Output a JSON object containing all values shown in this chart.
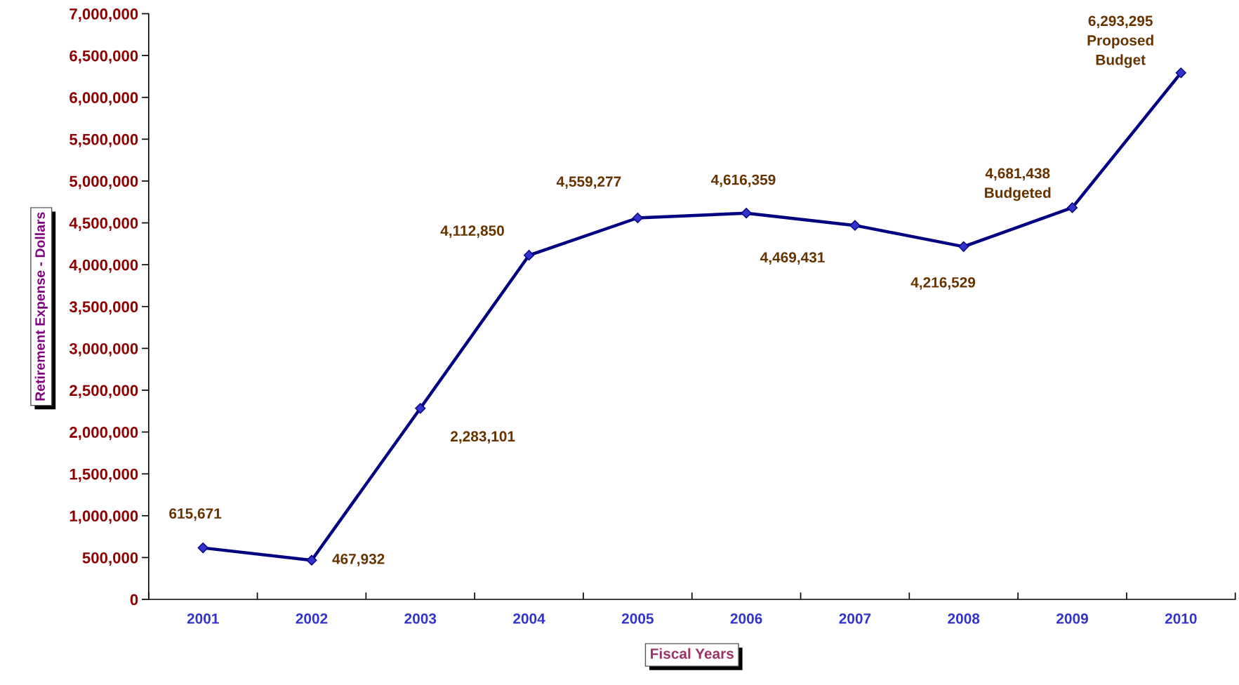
{
  "chart_data": {
    "type": "line",
    "xlabel": "Fiscal Years",
    "ylabel": "Retirement Expense - Dollars",
    "categories": [
      "2001",
      "2002",
      "2003",
      "2004",
      "2005",
      "2006",
      "2007",
      "2008",
      "2009",
      "2010"
    ],
    "series": [
      {
        "color": "#000080",
        "values": [
          615671,
          467932,
          2283101,
          4112850,
          4559277,
          4616359,
          4469431,
          4216529,
          4681438,
          6293295
        ],
        "value_labels": [
          "615,671",
          "467,932",
          "2,283,101",
          "4,112,850",
          "4,559,277",
          "4,616,359",
          "4,469,431",
          "4,216,529",
          "4,681,438\nBudgeted",
          "6,293,295\nProposed\nBudget"
        ]
      }
    ],
    "marker": "diamond",
    "line_style": "solid",
    "data_labels": true,
    "ylim": [
      0,
      7000000
    ],
    "yticks": [
      {
        "value": 0,
        "label": "0"
      },
      {
        "value": 500000,
        "label": "500,000"
      },
      {
        "value": 1000000,
        "label": "1,000,000"
      },
      {
        "value": 1500000,
        "label": "1,500,000"
      },
      {
        "value": 2000000,
        "label": "2,000,000"
      },
      {
        "value": 2500000,
        "label": "2,500,000"
      },
      {
        "value": 3000000,
        "label": "3,000,000"
      },
      {
        "value": 3500000,
        "label": "3,500,000"
      },
      {
        "value": 4000000,
        "label": "4,000,000"
      },
      {
        "value": 4500000,
        "label": "4,500,000"
      },
      {
        "value": 5000000,
        "label": "5,000,000"
      },
      {
        "value": 5500000,
        "label": "5,500,000"
      },
      {
        "value": 6000000,
        "label": "6,000,000"
      },
      {
        "value": 6500000,
        "label": "6,500,000"
      },
      {
        "value": 7000000,
        "label": "7,000,000"
      }
    ],
    "grid": false,
    "legend": false
  }
}
